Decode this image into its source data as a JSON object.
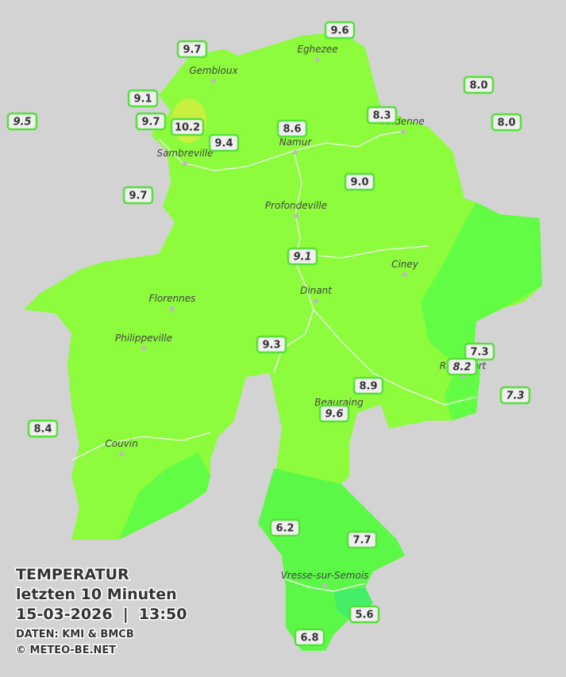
{
  "title": {
    "heading": "TEMPERATUR",
    "period": "letzten 10 Minuten",
    "datetime": "15-03-2026  |  13:50",
    "source": "DATEN: KMI & BMCB",
    "copyright": "© METEO-BE.NET"
  },
  "towns": [
    {
      "label": "Eghezee"
    },
    {
      "label": "Gembloux"
    },
    {
      "label": "Andenne"
    },
    {
      "label": "Namur"
    },
    {
      "label": "Sambreville"
    },
    {
      "label": "Profondeville"
    },
    {
      "label": "Ciney"
    },
    {
      "label": "Dinant"
    },
    {
      "label": "Florennes"
    },
    {
      "label": "Philippeville"
    },
    {
      "label": "Rochefort"
    },
    {
      "label": "Beauraing"
    },
    {
      "label": "Couvin"
    },
    {
      "label": "Vresse-sur-Semois"
    }
  ],
  "stations": [
    {
      "value": "9.6"
    },
    {
      "value": "9.7"
    },
    {
      "value": "8.0"
    },
    {
      "value": "9.1"
    },
    {
      "value": "8.3"
    },
    {
      "value": "9.5"
    },
    {
      "value": "9.7"
    },
    {
      "value": "10.2"
    },
    {
      "value": "8.6"
    },
    {
      "value": "8.0"
    },
    {
      "value": "9.4"
    },
    {
      "value": "9.0"
    },
    {
      "value": "9.7"
    },
    {
      "value": "9.1"
    },
    {
      "value": "9.3"
    },
    {
      "value": "7.3"
    },
    {
      "value": "8.2"
    },
    {
      "value": "8.9"
    },
    {
      "value": "7.3"
    },
    {
      "value": "9.6"
    },
    {
      "value": "8.4"
    },
    {
      "value": "6.2"
    },
    {
      "value": "7.7"
    },
    {
      "value": "5.6"
    },
    {
      "value": "6.8"
    }
  ]
}
